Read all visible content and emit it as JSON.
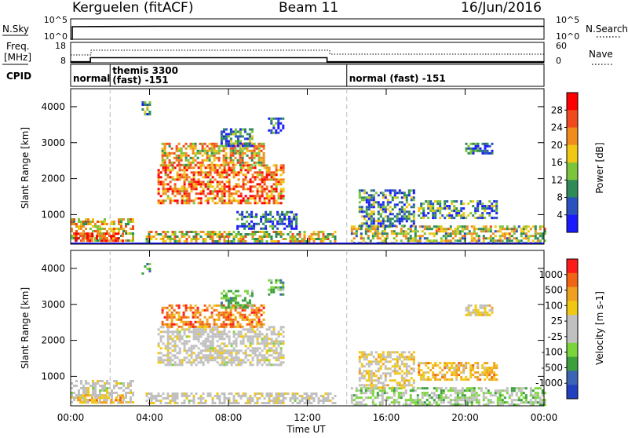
{
  "header": {
    "station": "Kerguelen (fitACF)",
    "beam": "Beam 11",
    "date": "16/Jun/2016"
  },
  "strip_panels": {
    "nsky": {
      "label": "N.Sky",
      "ticks": [
        "10^5",
        "10^0"
      ]
    },
    "nsearch": {
      "label": "N.Search",
      "ticks": [
        "10^5",
        "10^0"
      ]
    },
    "freq": {
      "label_line1": "Freq.",
      "label_line2": "[MHz]",
      "ticks": [
        "18",
        "8"
      ],
      "steps_mhz": [
        [
          0,
          8.5
        ],
        [
          1,
          10.5
        ],
        [
          13,
          8.5
        ],
        [
          24,
          8.5
        ]
      ]
    },
    "nave": {
      "label": "Nave",
      "ticks": [
        "60",
        "0"
      ]
    },
    "cpid": {
      "label": "CPID",
      "segments": [
        {
          "start_hr": 0,
          "end_hr": 2,
          "line1": "normal",
          "line2": ""
        },
        {
          "start_hr": 2,
          "end_hr": 14,
          "line1": "themis 3300",
          "line2": "(fast) -151"
        },
        {
          "start_hr": 14,
          "end_hr": 24,
          "line1": "normal (fast) -151",
          "line2": ""
        }
      ]
    }
  },
  "colors": {
    "power": [
      "#1a1aff",
      "#2a52be",
      "#2e8b57",
      "#7cc43c",
      "#f0c814",
      "#f08c1e",
      "#f04a1e",
      "#ff0000"
    ],
    "velocity": [
      "#ff1a1a",
      "#f06414",
      "#f0a020",
      "#f0c814",
      "#c0c0c0",
      "#c0c0c0",
      "#7cd43c",
      "#3ca03c",
      "#3c64b4",
      "#2040c0"
    ]
  },
  "chart_data": [
    {
      "type": "heatmap",
      "quantity": "Power",
      "ylabel": "Slant Range [km]",
      "xlabel": "",
      "ylim": [
        180,
        4500
      ],
      "xlim": [
        0,
        24
      ],
      "yticks": [
        "1000",
        "2000",
        "3000",
        "4000"
      ],
      "xticks": [],
      "colorbar": {
        "label": "Power [dB]",
        "range": [
          0,
          32
        ],
        "ticks": [
          "4",
          "8",
          "12",
          "16",
          "20",
          "24",
          "28"
        ]
      },
      "regions": [
        {
          "x": [
            0.0,
            3.2
          ],
          "y": [
            300,
            900
          ],
          "level": 0.55
        },
        {
          "x": [
            0.2,
            2.6
          ],
          "y": [
            250,
            500
          ],
          "level": 0.9
        },
        {
          "x": [
            3.6,
            4.0
          ],
          "y": [
            3800,
            4150
          ],
          "level": 0.25
        },
        {
          "x": [
            4.4,
            10.8
          ],
          "y": [
            1300,
            2400
          ],
          "level": 0.75
        },
        {
          "x": [
            4.6,
            9.8
          ],
          "y": [
            2350,
            3000
          ],
          "level": 0.6
        },
        {
          "x": [
            7.6,
            9.2
          ],
          "y": [
            2900,
            3400
          ],
          "level": 0.3
        },
        {
          "x": [
            10.0,
            10.8
          ],
          "y": [
            3300,
            3700
          ],
          "level": 0.2
        },
        {
          "x": [
            8.4,
            11.4
          ],
          "y": [
            600,
            1100
          ],
          "level": 0.2
        },
        {
          "x": [
            3.8,
            13.4
          ],
          "y": [
            250,
            550
          ],
          "level": 0.55
        },
        {
          "x": [
            14.2,
            24.0
          ],
          "y": [
            200,
            700
          ],
          "level": 0.5
        },
        {
          "x": [
            14.6,
            17.4
          ],
          "y": [
            700,
            1700
          ],
          "level": 0.3
        },
        {
          "x": [
            17.6,
            21.6
          ],
          "y": [
            900,
            1400
          ],
          "level": 0.3
        },
        {
          "x": [
            20.0,
            21.4
          ],
          "y": [
            2700,
            3000
          ],
          "level": 0.2
        }
      ]
    },
    {
      "type": "heatmap",
      "quantity": "Velocity",
      "ylabel": "Slant Range [km]",
      "xlabel": "Time UT",
      "ylim": [
        180,
        4500
      ],
      "xlim": [
        0,
        24
      ],
      "yticks": [
        "1000",
        "2000",
        "3000",
        "4000"
      ],
      "xticks": [
        "00:00",
        "04:00",
        "08:00",
        "12:00",
        "16:00",
        "20:00",
        "00:00"
      ],
      "colorbar": {
        "label": "Velocity [m s-1]",
        "ticks": [
          "1000",
          "500",
          "100",
          "25",
          "-25",
          "-100",
          "-500",
          "-1000"
        ]
      },
      "regions": [
        {
          "x": [
            0.0,
            3.2
          ],
          "y": [
            300,
            900
          ],
          "level": 0.5
        },
        {
          "x": [
            0.2,
            2.6
          ],
          "y": [
            250,
            500
          ],
          "level": 0.3
        },
        {
          "x": [
            3.6,
            4.0
          ],
          "y": [
            3800,
            4150
          ],
          "level": 0.75
        },
        {
          "x": [
            4.4,
            10.8
          ],
          "y": [
            1300,
            2400
          ],
          "level": 0.48
        },
        {
          "x": [
            4.6,
            9.8
          ],
          "y": [
            2350,
            3000
          ],
          "level": 0.2
        },
        {
          "x": [
            7.6,
            9.2
          ],
          "y": [
            2900,
            3400
          ],
          "level": 0.7
        },
        {
          "x": [
            10.0,
            10.8
          ],
          "y": [
            3300,
            3700
          ],
          "level": 0.7
        },
        {
          "x": [
            3.8,
            13.4
          ],
          "y": [
            250,
            550
          ],
          "level": 0.48
        },
        {
          "x": [
            14.2,
            24.0
          ],
          "y": [
            200,
            700
          ],
          "level": 0.62
        },
        {
          "x": [
            14.6,
            17.4
          ],
          "y": [
            700,
            1700
          ],
          "level": 0.4
        },
        {
          "x": [
            17.6,
            21.6
          ],
          "y": [
            900,
            1400
          ],
          "level": 0.3
        },
        {
          "x": [
            20.0,
            21.4
          ],
          "y": [
            2700,
            3000
          ],
          "level": 0.4
        }
      ]
    }
  ]
}
